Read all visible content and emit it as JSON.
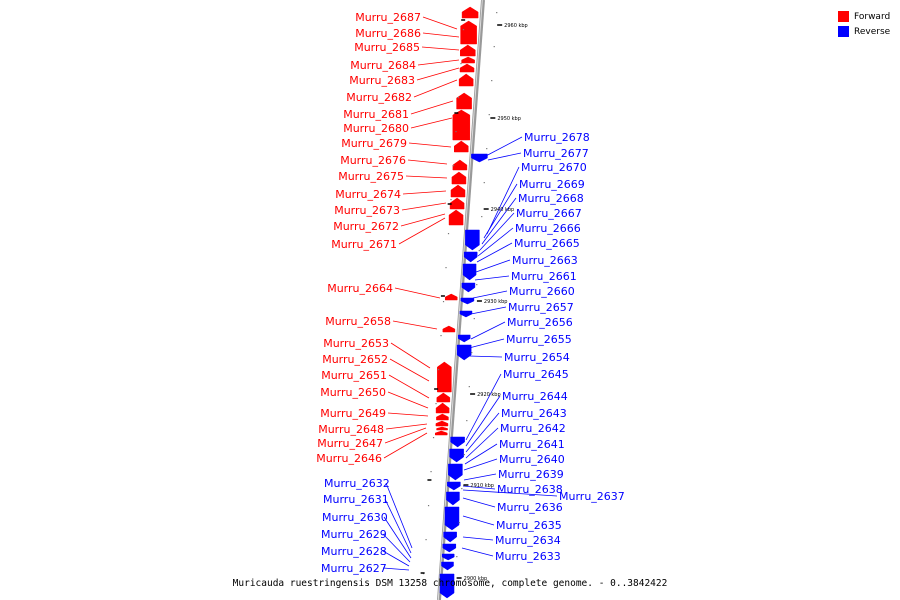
{
  "caption": "Muricauda ruestringensis DSM 13258 chromosome, complete genome. - 0..3842422",
  "legend": {
    "forward_label": "Forward",
    "reverse_label": "Reverse",
    "forward_color": "#ff0000",
    "reverse_color": "#0000ff"
  },
  "colors": {
    "forward": "#ff0000",
    "reverse": "#0000ff",
    "backbone": "#888888"
  },
  "ticks": [
    "2960 kbp",
    "2950 kbp",
    "2940 kbp",
    "2930 kbp",
    "2920 kbp",
    "2910 kbp",
    "2900 kbp"
  ],
  "forward_genes": [
    "Murru_2687",
    "Murru_2686",
    "Murru_2685",
    "Murru_2684",
    "Murru_2683",
    "Murru_2682",
    "Murru_2681",
    "Murru_2680",
    "Murru_2679",
    "Murru_2676",
    "Murru_2675",
    "Murru_2674",
    "Murru_2673",
    "Murru_2672",
    "Murru_2671",
    "Murru_2664",
    "Murru_2658",
    "Murru_2653",
    "Murru_2652",
    "Murru_2651",
    "Murru_2650",
    "Murru_2649",
    "Murru_2648",
    "Murru_2647",
    "Murru_2646"
  ],
  "reverse_genes": [
    "Murru_2678",
    "Murru_2677",
    "Murru_2670",
    "Murru_2669",
    "Murru_2668",
    "Murru_2667",
    "Murru_2666",
    "Murru_2665",
    "Murru_2663",
    "Murru_2661",
    "Murru_2660",
    "Murru_2657",
    "Murru_2656",
    "Murru_2655",
    "Murru_2654",
    "Murru_2645",
    "Murru_2644",
    "Murru_2643",
    "Murru_2642",
    "Murru_2641",
    "Murru_2640",
    "Murru_2639",
    "Murru_2638",
    "Murru_2637",
    "Murru_2636",
    "Murru_2635",
    "Murru_2634",
    "Murru_2633",
    "Murru_2632",
    "Murru_2631",
    "Murru_2630",
    "Murru_2629",
    "Murru_2628",
    "Murru_2627"
  ]
}
